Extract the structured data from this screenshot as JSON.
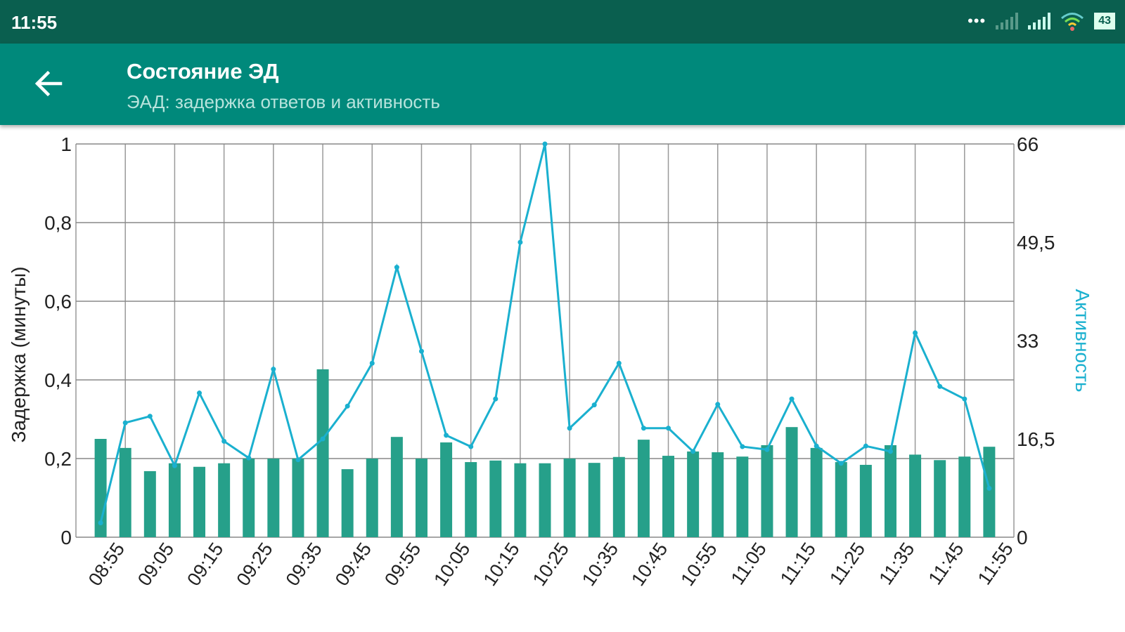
{
  "status_bar": {
    "time": "11:55",
    "battery": "43",
    "icons": [
      "more-dots-icon",
      "signal-weak-icon",
      "signal-icon",
      "wifi-icon",
      "battery-icon"
    ]
  },
  "app_bar": {
    "title": "Состояние ЭД",
    "subtitle": "ЭАД: задержка ответов и активность",
    "back_icon": "arrow-back-icon"
  },
  "colors": {
    "status": "#0a5f4f",
    "appbar": "#00897b",
    "bar": "#26a08a",
    "line": "#1ab0cf"
  },
  "chart_data": {
    "type": "bar+line",
    "ylabel_left": "Задержка (минуты)",
    "ylabel_right": "Активность",
    "ylim_left": [
      0,
      1
    ],
    "ylim_right": [
      0,
      66
    ],
    "left_ticks": [
      "0",
      "0,2",
      "0,4",
      "0,6",
      "0,8",
      "1"
    ],
    "left_tick_values": [
      0,
      0.2,
      0.4,
      0.6,
      0.8,
      1
    ],
    "right_ticks": [
      "0",
      "16,5",
      "33",
      "49,5",
      "66"
    ],
    "right_tick_values": [
      0,
      16.5,
      33,
      49.5,
      66
    ],
    "x_tick_labels": [
      "08:55",
      "09:05",
      "09:15",
      "09:25",
      "09:35",
      "09:45",
      "09:55",
      "10:05",
      "10:15",
      "10:25",
      "10:35",
      "10:45",
      "10:55",
      "11:05",
      "11:15",
      "11:25",
      "11:35",
      "11:45",
      "11:55"
    ],
    "grid": true,
    "series": [
      {
        "name": "Задержка",
        "type": "bar",
        "axis": "left",
        "values": [
          0.25,
          0.227,
          0.168,
          0.188,
          0.179,
          0.188,
          0.2,
          0.2,
          0.2,
          0.427,
          0.173,
          0.2,
          0.255,
          0.2,
          0.241,
          0.191,
          0.195,
          0.188,
          0.188,
          0.2,
          0.189,
          0.204,
          0.248,
          0.207,
          0.218,
          0.216,
          0.205,
          0.234,
          0.28,
          0.227,
          0.191,
          0.184,
          0.234,
          0.21,
          0.196,
          0.205,
          0.23
        ]
      },
      {
        "name": "Активность",
        "type": "line",
        "axis": "right",
        "values": [
          2.4,
          19.2,
          20.3,
          12,
          24.2,
          16.1,
          13.3,
          28.2,
          13,
          16.5,
          22,
          29.2,
          45.3,
          31.2,
          17.1,
          15.2,
          23.2,
          49.5,
          66,
          18.3,
          22.2,
          29.2,
          18.3,
          18.3,
          14.4,
          22.3,
          15.2,
          14.7,
          23.2,
          15.3,
          12.4,
          15.3,
          14.4,
          34.3,
          25.3,
          23.2,
          8.2
        ]
      }
    ]
  }
}
